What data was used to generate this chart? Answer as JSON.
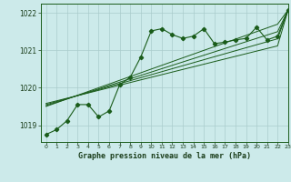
{
  "title": "Graphe pression niveau de la mer (hPa)",
  "bg_color": "#cceaea",
  "grid_color": "#aacccc",
  "line_color": "#1a5c1a",
  "xlabel_color": "#1a3d1a",
  "xlim": [
    -0.5,
    23
  ],
  "ylim": [
    1018.55,
    1022.25
  ],
  "yticks": [
    1019,
    1020,
    1021,
    1022
  ],
  "xticks": [
    0,
    1,
    2,
    3,
    4,
    5,
    6,
    7,
    8,
    9,
    10,
    11,
    12,
    13,
    14,
    15,
    16,
    17,
    18,
    19,
    20,
    21,
    22,
    23
  ],
  "series": {
    "main": [
      1018.75,
      1018.88,
      1019.12,
      1019.55,
      1019.55,
      1019.22,
      1019.38,
      1020.08,
      1020.28,
      1020.82,
      1021.52,
      1021.58,
      1021.42,
      1021.32,
      1021.38,
      1021.58,
      1021.18,
      1021.22,
      1021.28,
      1021.32,
      1021.62,
      1021.28,
      1021.38,
      1022.08
    ],
    "trend1": [
      1019.58,
      1019.65,
      1019.72,
      1019.79,
      1019.86,
      1019.93,
      1020.0,
      1020.07,
      1020.14,
      1020.21,
      1020.28,
      1020.35,
      1020.42,
      1020.49,
      1020.56,
      1020.63,
      1020.7,
      1020.77,
      1020.84,
      1020.91,
      1020.98,
      1021.05,
      1021.12,
      1022.08
    ],
    "trend2": [
      1019.55,
      1019.63,
      1019.71,
      1019.79,
      1019.87,
      1019.95,
      1020.03,
      1020.11,
      1020.19,
      1020.27,
      1020.35,
      1020.43,
      1020.51,
      1020.59,
      1020.67,
      1020.75,
      1020.83,
      1020.91,
      1020.99,
      1021.07,
      1021.15,
      1021.23,
      1021.31,
      1022.08
    ],
    "trend3": [
      1019.52,
      1019.61,
      1019.7,
      1019.79,
      1019.88,
      1019.97,
      1020.06,
      1020.15,
      1020.24,
      1020.33,
      1020.42,
      1020.51,
      1020.6,
      1020.69,
      1020.78,
      1020.87,
      1020.96,
      1021.05,
      1021.14,
      1021.23,
      1021.32,
      1021.41,
      1021.5,
      1022.08
    ],
    "trend4": [
      1019.5,
      1019.6,
      1019.7,
      1019.8,
      1019.9,
      1020.0,
      1020.1,
      1020.2,
      1020.3,
      1020.4,
      1020.5,
      1020.6,
      1020.7,
      1020.8,
      1020.9,
      1021.0,
      1021.1,
      1021.2,
      1021.3,
      1021.4,
      1021.5,
      1021.6,
      1021.7,
      1022.08
    ]
  }
}
